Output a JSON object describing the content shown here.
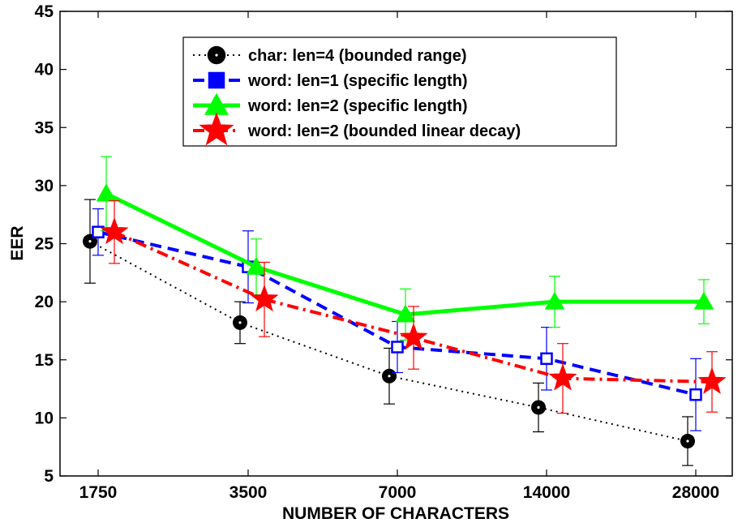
{
  "chart_data": {
    "type": "line",
    "title": "",
    "xlabel": "NUMBER OF CHARACTERS",
    "ylabel": "EER",
    "categories": [
      "1750",
      "3500",
      "7000",
      "14000",
      "28000"
    ],
    "ylim": [
      5,
      45
    ],
    "yticks": [
      5,
      10,
      15,
      20,
      25,
      30,
      35,
      40,
      45
    ],
    "grid": false,
    "legend_position": "top-center",
    "series": [
      {
        "name": "char: len=4 (bounded range)",
        "color": "#000000",
        "marker": "circle",
        "line_style": "dotted",
        "values": [
          25.2,
          18.2,
          13.6,
          10.9,
          8.0
        ],
        "error": [
          3.6,
          1.8,
          2.4,
          2.1,
          2.1
        ]
      },
      {
        "name": "word: len=1 (specific length)",
        "color": "#0000ff",
        "marker": "square",
        "line_style": "dashed",
        "values": [
          26.0,
          23.0,
          16.1,
          15.1,
          12.0
        ],
        "error": [
          2.0,
          3.1,
          2.2,
          2.7,
          3.1
        ]
      },
      {
        "name": "word: len=2 (specific length)",
        "color": "#00ff00",
        "marker": "triangle",
        "line_style": "solid",
        "values": [
          29.3,
          23.0,
          18.9,
          20.0,
          20.0
        ],
        "error": [
          3.2,
          2.4,
          2.2,
          2.2,
          1.9
        ]
      },
      {
        "name": "word: len=2 (bounded linear decay)",
        "color": "#ff0000",
        "marker": "star",
        "line_style": "dashdot",
        "values": [
          26.0,
          20.2,
          16.9,
          13.4,
          13.1
        ],
        "error": [
          2.7,
          3.2,
          2.7,
          3.0,
          2.6
        ]
      }
    ]
  }
}
